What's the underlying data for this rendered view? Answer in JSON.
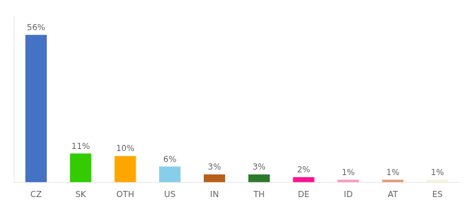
{
  "chart_data": {
    "type": "bar",
    "categories": [
      "CZ",
      "SK",
      "OTH",
      "US",
      "IN",
      "TH",
      "DE",
      "ID",
      "AT",
      "ES"
    ],
    "values": [
      56,
      11,
      10,
      6,
      3,
      3,
      2,
      1,
      1,
      1
    ],
    "value_labels": [
      "56%",
      "11%",
      "10%",
      "6%",
      "3%",
      "3%",
      "2%",
      "1%",
      "1%",
      "1%"
    ],
    "colors": [
      "#4472C4",
      "#33CC00",
      "#FFA500",
      "#87CEEB",
      "#B8601A",
      "#2D7A2D",
      "#FF1493",
      "#FF99BB",
      "#E8997A",
      "#F5F5DC"
    ],
    "ylim": [
      0,
      63
    ],
    "grid": false,
    "data_labels": true,
    "tick_labels": "x"
  }
}
